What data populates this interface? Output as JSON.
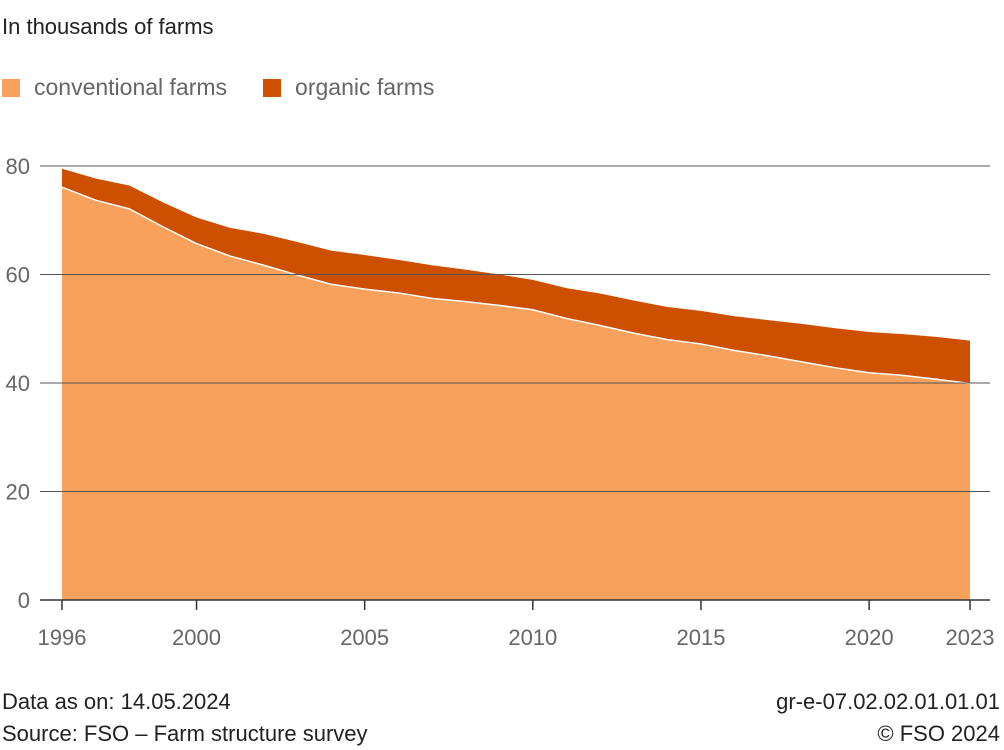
{
  "subtitle": "In thousands of farms",
  "legend": {
    "conventional_label": "conventional farms",
    "organic_label": "organic farms",
    "conventional_color": "#f7a15c",
    "organic_color": "#cc5000"
  },
  "footer": {
    "data_as_on": "Data as on: 14.05.2024",
    "source": "Source: FSO – Farm structure survey",
    "code": "gr-e-07.02.02.01.01.01",
    "copyright": "© FSO 2024"
  },
  "chart_data": {
    "type": "area",
    "stacked": true,
    "title": "",
    "xlabel": "",
    "ylabel": "In thousands of farms",
    "xlim": [
      1996,
      2023
    ],
    "ylim": [
      0,
      80
    ],
    "yticks": [
      0,
      20,
      40,
      60,
      80
    ],
    "xticks": [
      1996,
      2000,
      2005,
      2010,
      2015,
      2020,
      2023
    ],
    "grid": true,
    "legend_position": "top-left",
    "x": [
      1996,
      1997,
      1998,
      1999,
      2000,
      2001,
      2002,
      2003,
      2004,
      2005,
      2006,
      2007,
      2008,
      2009,
      2010,
      2011,
      2012,
      2013,
      2014,
      2015,
      2016,
      2017,
      2018,
      2019,
      2020,
      2021,
      2022,
      2023
    ],
    "series": [
      {
        "name": "conventional farms",
        "color": "#f7a15c",
        "values": [
          76.1,
          73.7,
          72.1,
          68.8,
          65.7,
          63.4,
          61.7,
          59.9,
          58.2,
          57.3,
          56.6,
          55.6,
          55.0,
          54.3,
          53.5,
          51.9,
          50.6,
          49.2,
          48.0,
          47.2,
          46.0,
          45.0,
          43.9,
          42.8,
          41.9,
          41.4,
          40.7,
          39.9
        ]
      },
      {
        "name": "organic farms",
        "color": "#cc5000",
        "values": [
          3.4,
          4.0,
          4.3,
          4.5,
          4.8,
          5.2,
          5.8,
          6.1,
          6.2,
          6.3,
          6.1,
          6.1,
          5.9,
          5.7,
          5.5,
          5.6,
          5.9,
          6.0,
          6.0,
          6.1,
          6.3,
          6.6,
          7.0,
          7.3,
          7.5,
          7.6,
          7.8,
          7.9
        ]
      }
    ]
  }
}
